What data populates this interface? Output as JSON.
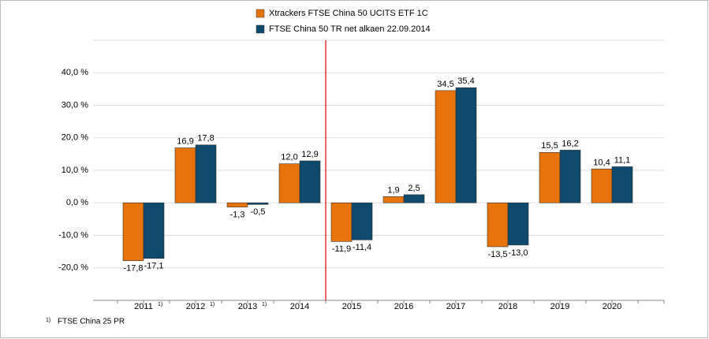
{
  "chart_data": {
    "type": "bar",
    "categories": [
      "2011",
      "2012",
      "2013",
      "2014",
      "2015",
      "2016",
      "2017",
      "2018",
      "2019",
      "2020"
    ],
    "category_notes": [
      "1)",
      "1)",
      "1)",
      null,
      null,
      null,
      null,
      null,
      null,
      null
    ],
    "series": [
      {
        "name": "Xtrackers FTSE China 50 UCITS ETF  1C",
        "color": "#e8730c",
        "values": [
          -17.8,
          16.9,
          -1.3,
          12.0,
          -11.9,
          1.9,
          34.5,
          -13.5,
          15.5,
          10.4
        ],
        "value_labels": [
          "-17,8",
          "16,9",
          "-1,3",
          "12,0",
          "-11,9",
          "1,9",
          "34,5",
          "-13,5",
          "15,5",
          "10,4"
        ]
      },
      {
        "name": "FTSE China 50 TR net alkaen 22.09.2014",
        "color": "#0e4a6e",
        "values": [
          -17.1,
          17.8,
          -0.5,
          12.9,
          -11.4,
          2.5,
          35.4,
          -13.0,
          16.2,
          11.1
        ],
        "value_labels": [
          "-17,1",
          "17,8",
          "-0,5",
          "12,9",
          "-11,4",
          "2,5",
          "35,4",
          "-13,0",
          "16,2",
          "11,1"
        ]
      }
    ],
    "ylim": [
      -30,
      50
    ],
    "yticks": [
      {
        "value": -20,
        "label": "-20,0 %"
      },
      {
        "value": -10,
        "label": "-10,0 %"
      },
      {
        "value": 0,
        "label": "0,0 %"
      },
      {
        "value": 10,
        "label": "10,0 %"
      },
      {
        "value": 20,
        "label": "20,0 %"
      },
      {
        "value": 30,
        "label": "30,0 %"
      },
      {
        "value": 40,
        "label": "40,0 %"
      }
    ],
    "grid": true,
    "footnote": {
      "marker": "1)",
      "text": "FTSE China 25 PR"
    }
  }
}
